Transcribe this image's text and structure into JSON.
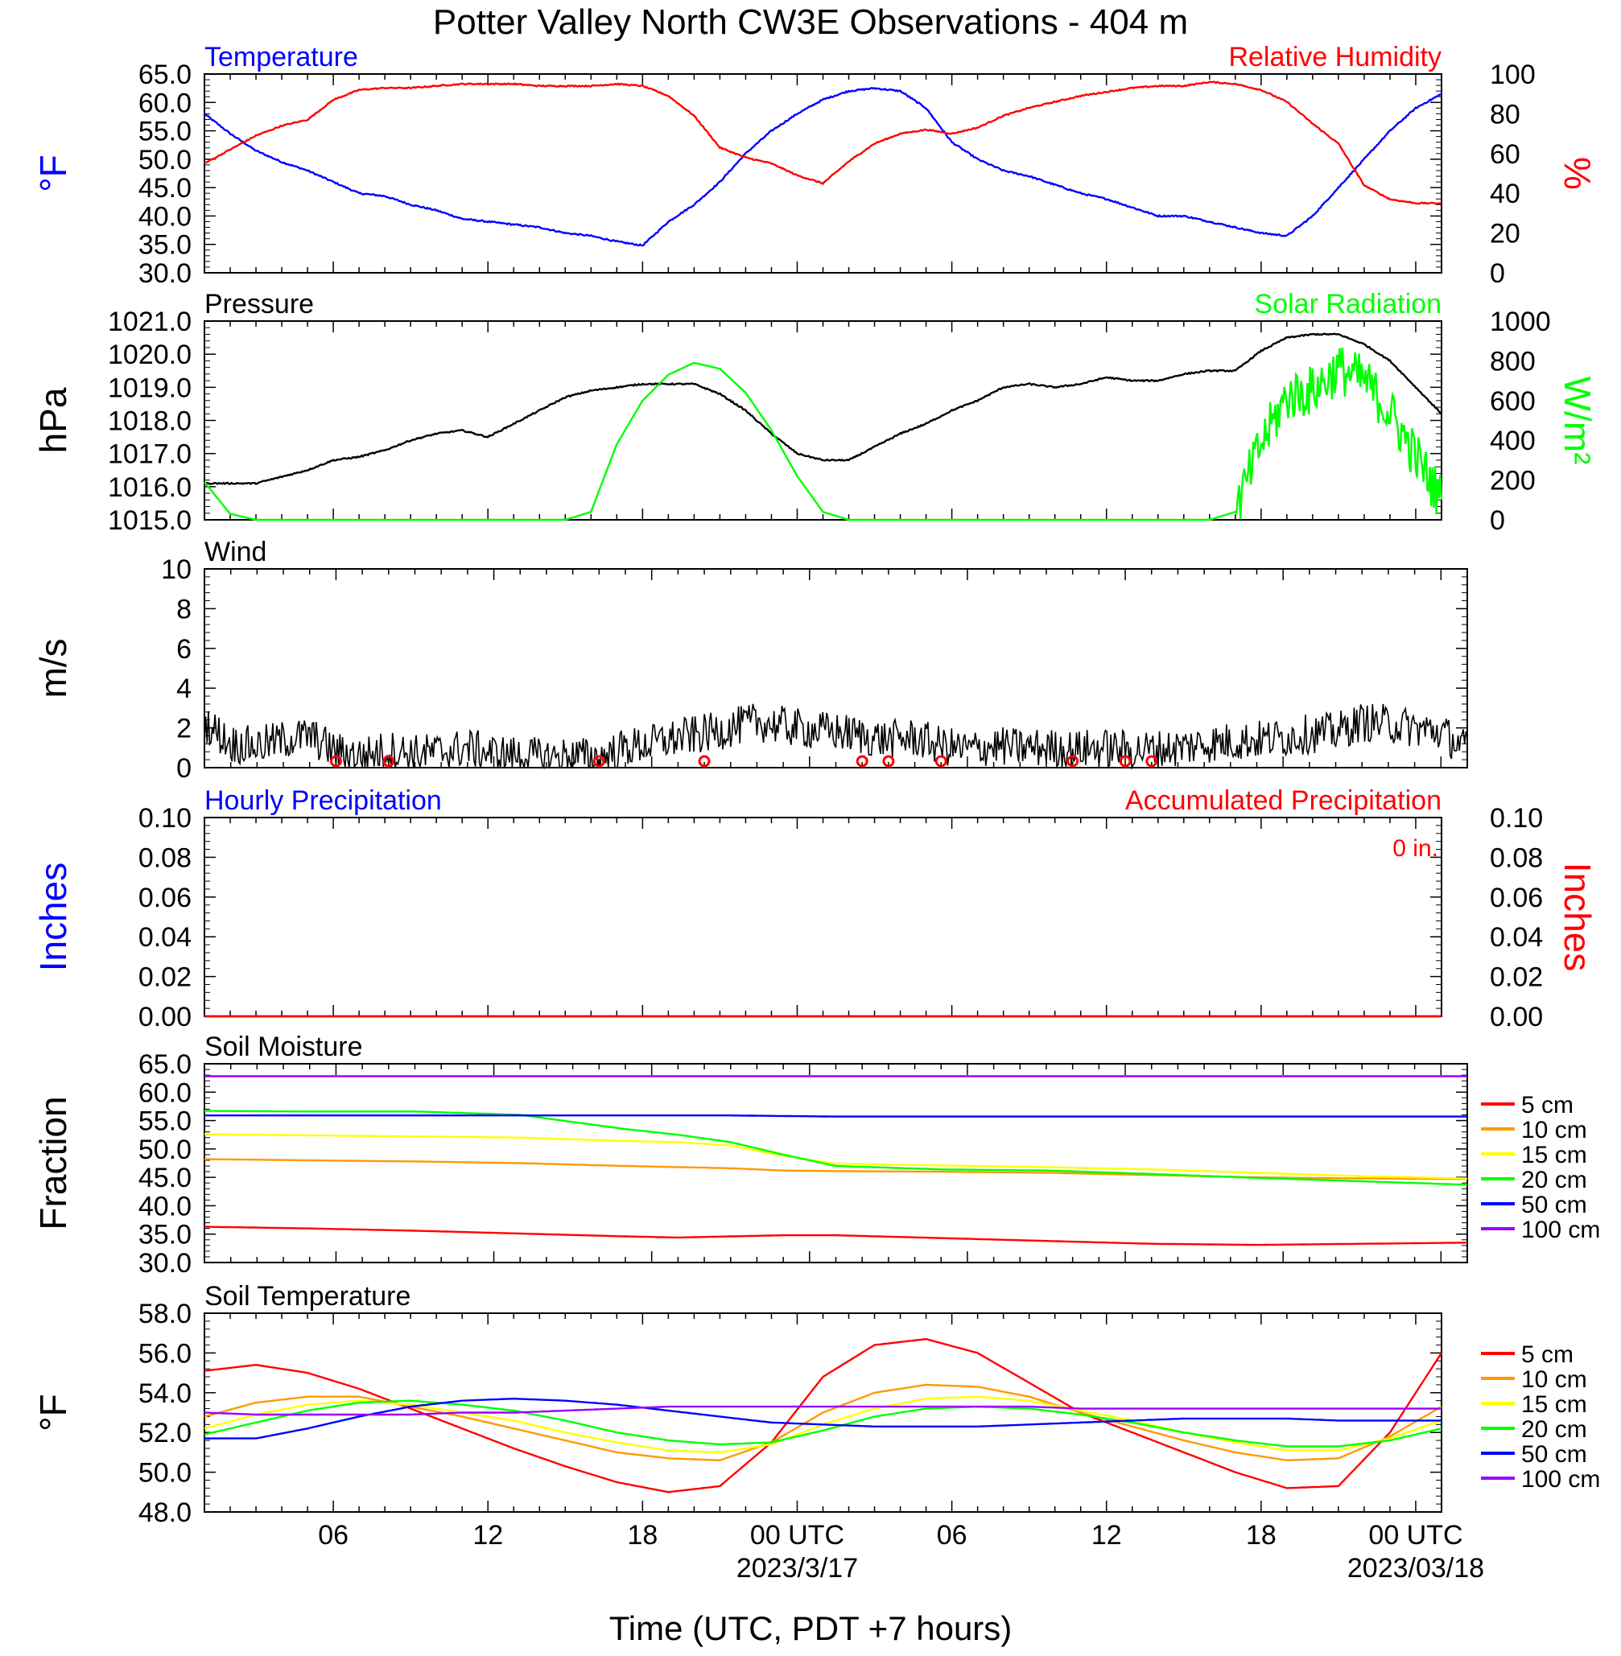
{
  "title": "Potter Valley North CW3E Observations - 404 m",
  "xlabel": "Time (UTC, PDT +7 hours)",
  "colors": {
    "temperature": "#0000ff",
    "humidity": "#ff0000",
    "pressure": "#000000",
    "solar": "#00ff00",
    "wind": "#000000",
    "barbs": "#ff0000",
    "precip_hourly": "#0000ff",
    "precip_accum": "#ff0000",
    "depth_5": "#ff0000",
    "depth_10": "#ff9900",
    "depth_15": "#ffff00",
    "depth_20": "#00ff00",
    "depth_50": "#0000ff",
    "depth_100": "#9900ff"
  },
  "x_axis": {
    "range_hours": [
      0,
      48
    ],
    "ticks": [
      {
        "h": 5,
        "label": "06"
      },
      {
        "h": 11,
        "label": "12"
      },
      {
        "h": 17,
        "label": "18"
      },
      {
        "h": 23,
        "label": "00 UTC",
        "date": "2023/3/17"
      },
      {
        "h": 29,
        "label": "06"
      },
      {
        "h": 35,
        "label": "12"
      },
      {
        "h": 41,
        "label": "18"
      },
      {
        "h": 47,
        "label": "00 UTC",
        "date": "2023/03/18"
      }
    ]
  },
  "chart_data": [
    {
      "id": "temp_rh",
      "type": "line",
      "title_left": "Temperature",
      "title_right": "Relative Humidity",
      "ylabel": "°F",
      "ylabel_right": "%",
      "ylim": [
        30,
        65
      ],
      "ylim_right": [
        0,
        100
      ],
      "yticks": [
        "30.0",
        "35.0",
        "40.0",
        "45.0",
        "50.0",
        "55.0",
        "60.0",
        "65.0"
      ],
      "yticks_right": [
        "0",
        "20",
        "40",
        "60",
        "80",
        "100"
      ],
      "x": [
        0,
        1,
        2,
        3,
        4,
        5,
        6,
        7,
        8,
        9,
        10,
        11,
        12,
        13,
        14,
        15,
        16,
        17,
        18,
        19,
        20,
        21,
        22,
        23,
        24,
        25,
        26,
        27,
        28,
        29,
        30,
        31,
        32,
        33,
        34,
        35,
        36,
        37,
        38,
        39,
        40,
        41,
        42,
        43,
        44,
        45,
        46,
        47,
        48
      ],
      "series": [
        {
          "name": "Temperature",
          "axis": "left",
          "color_key": "temperature",
          "values": [
            58,
            54.5,
            51.5,
            49.5,
            48,
            46,
            44,
            43.5,
            42,
            41,
            39.5,
            39,
            38.5,
            38,
            37,
            36.5,
            35.5,
            34.8,
            39,
            42,
            46,
            51,
            55,
            58,
            60.5,
            62,
            62.5,
            62,
            59,
            53,
            50,
            48,
            47,
            45.5,
            44,
            43,
            41.5,
            40,
            40,
            39,
            38,
            37,
            36.5,
            40,
            45,
            50,
            55,
            59,
            61.5
          ]
        },
        {
          "name": "Relative Humidity",
          "axis": "right",
          "color_key": "humidity",
          "values": [
            55,
            62,
            69,
            74,
            77,
            87,
            92,
            93,
            93,
            94,
            95,
            95,
            95,
            94,
            94,
            94,
            95,
            94,
            89,
            79,
            63,
            58,
            55,
            49,
            45,
            56,
            65,
            70,
            72,
            70,
            73,
            79,
            83,
            86,
            89,
            91,
            93,
            94,
            94,
            96,
            95,
            92,
            86,
            75,
            65,
            44,
            37,
            35,
            35
          ]
        }
      ]
    },
    {
      "id": "pressure_solar",
      "type": "line",
      "title_left": "Pressure",
      "title_right": "Solar Radiation",
      "ylabel": "hPa",
      "ylabel_right": "W/m²",
      "ylim": [
        1015,
        1021
      ],
      "ylim_right": [
        0,
        1000
      ],
      "yticks": [
        "1015.0",
        "1016.0",
        "1017.0",
        "1018.0",
        "1019.0",
        "1020.0",
        "1021.0"
      ],
      "yticks_right": [
        "0",
        "200",
        "400",
        "600",
        "800",
        "1000"
      ],
      "x": [
        0,
        1,
        2,
        3,
        4,
        5,
        6,
        7,
        8,
        9,
        10,
        11,
        12,
        13,
        14,
        15,
        16,
        17,
        18,
        19,
        20,
        21,
        22,
        23,
        24,
        25,
        26,
        27,
        28,
        29,
        30,
        31,
        32,
        33,
        34,
        35,
        36,
        37,
        38,
        39,
        40,
        41,
        42,
        43,
        44,
        45,
        46,
        47,
        48
      ],
      "series": [
        {
          "name": "Pressure",
          "axis": "left",
          "color_key": "pressure",
          "values": [
            1016.1,
            1016.1,
            1016.1,
            1016.3,
            1016.5,
            1016.8,
            1016.9,
            1017.1,
            1017.4,
            1017.6,
            1017.7,
            1017.5,
            1017.9,
            1018.3,
            1018.7,
            1018.9,
            1019.0,
            1019.1,
            1019.1,
            1019.1,
            1018.8,
            1018.3,
            1017.6,
            1017.0,
            1016.8,
            1016.8,
            1017.2,
            1017.6,
            1017.9,
            1018.3,
            1018.6,
            1019.0,
            1019.1,
            1019.0,
            1019.1,
            1019.3,
            1019.2,
            1019.2,
            1019.4,
            1019.5,
            1019.5,
            1020.1,
            1020.5,
            1020.6,
            1020.6,
            1020.3,
            1019.8,
            1019.0,
            1018.2
          ]
        },
        {
          "name": "Solar Radiation",
          "axis": "right",
          "color_key": "solar",
          "values": [
            190,
            30,
            0,
            0,
            0,
            0,
            0,
            0,
            0,
            0,
            0,
            0,
            0,
            0,
            0,
            40,
            380,
            600,
            730,
            790,
            760,
            640,
            450,
            220,
            40,
            0,
            0,
            0,
            0,
            0,
            0,
            0,
            0,
            0,
            0,
            0,
            0,
            0,
            0,
            0,
            40,
            380,
            620,
            650,
            760,
            700,
            540,
            320,
            100
          ]
        }
      ]
    },
    {
      "id": "wind",
      "type": "line",
      "title_left": "Wind",
      "ylabel": "m/s",
      "ylim": [
        0,
        10
      ],
      "yticks": [
        "0",
        "2",
        "4",
        "6",
        "8",
        "10"
      ],
      "x": [
        0,
        1,
        2,
        3,
        4,
        5,
        6,
        7,
        8,
        9,
        10,
        11,
        12,
        13,
        14,
        15,
        16,
        17,
        18,
        19,
        20,
        21,
        22,
        23,
        24,
        25,
        26,
        27,
        28,
        29,
        30,
        31,
        32,
        33,
        34,
        35,
        36,
        37,
        38,
        39,
        40,
        41,
        42,
        43,
        44,
        45,
        46,
        47,
        48
      ],
      "series": [
        {
          "name": "Wind",
          "color_key": "wind",
          "values": [
            2.3,
            1.2,
            1.1,
            1.4,
            1.6,
            0.8,
            0.6,
            0.9,
            0.7,
            0.8,
            1.0,
            0.7,
            0.6,
            0.5,
            0.6,
            0.5,
            1.0,
            1.2,
            1.5,
            1.7,
            2.0,
            2.3,
            2.1,
            1.9,
            1.8,
            1.6,
            1.4,
            1.5,
            1.1,
            0.9,
            1.1,
            1.0,
            1.0,
            0.9,
            1.0,
            0.9,
            0.9,
            1.0,
            1.2,
            1.3,
            1.4,
            1.5,
            1.7,
            1.8,
            2.3,
            2.2,
            2.0,
            1.8,
            0.9
          ]
        }
      ],
      "calm_marks_hours": [
        5,
        7,
        15,
        19,
        25,
        26,
        28,
        33,
        35,
        36
      ]
    },
    {
      "id": "precip",
      "type": "line",
      "title_left": "Hourly Precipitation",
      "title_right": "Accumulated Precipitation",
      "annotation": "0 in.",
      "ylabel": "Inches",
      "ylabel_right": "Inches",
      "ylim": [
        0,
        0.1
      ],
      "ylim_right": [
        0,
        0.1
      ],
      "yticks": [
        "0.00",
        "0.02",
        "0.04",
        "0.06",
        "0.08",
        "0.10"
      ],
      "yticks_right": [
        "0.00",
        "0.02",
        "0.04",
        "0.06",
        "0.08",
        "0.10"
      ],
      "x": [
        0,
        48
      ],
      "series": [
        {
          "name": "Hourly Precipitation",
          "axis": "left",
          "color_key": "precip_hourly",
          "values": [
            0,
            0
          ]
        },
        {
          "name": "Accumulated Precipitation",
          "axis": "right",
          "color_key": "precip_accum",
          "values": [
            0,
            0
          ]
        }
      ]
    },
    {
      "id": "soil_moisture",
      "type": "line",
      "title_left": "Soil Moisture",
      "ylabel": "Fraction",
      "ylim": [
        30,
        65
      ],
      "yticks": [
        "30.0",
        "35.0",
        "40.0",
        "45.0",
        "50.0",
        "55.0",
        "60.0",
        "65.0"
      ],
      "x": [
        0,
        4,
        8,
        12,
        16,
        18,
        20,
        22,
        24,
        28,
        32,
        36,
        40,
        44,
        48
      ],
      "series": [
        {
          "name": "5 cm",
          "color_key": "depth_5",
          "values": [
            36.3,
            36.0,
            35.6,
            35.1,
            34.6,
            34.4,
            34.6,
            34.8,
            34.8,
            34.3,
            33.8,
            33.3,
            33.1,
            33.3,
            33.5
          ]
        },
        {
          "name": "10 cm",
          "color_key": "depth_10",
          "values": [
            48.2,
            48.0,
            47.8,
            47.5,
            47.0,
            46.8,
            46.6,
            46.2,
            46.1,
            46.0,
            45.8,
            45.4,
            45.0,
            44.8,
            44.7
          ]
        },
        {
          "name": "15 cm",
          "color_key": "depth_15",
          "values": [
            52.6,
            52.4,
            52.2,
            52.0,
            51.4,
            51.2,
            50.6,
            48.8,
            47.4,
            47.1,
            46.8,
            46.4,
            45.8,
            45.2,
            44.8
          ]
        },
        {
          "name": "20 cm",
          "color_key": "depth_20",
          "values": [
            56.7,
            56.6,
            56.6,
            56.0,
            53.5,
            52.5,
            51.2,
            49.0,
            47.0,
            46.4,
            46.2,
            45.6,
            44.9,
            44.3,
            43.7
          ]
        },
        {
          "name": "50 cm",
          "color_key": "depth_50",
          "values": [
            55.9,
            55.9,
            55.9,
            55.9,
            55.9,
            55.9,
            55.9,
            55.8,
            55.7,
            55.7,
            55.7,
            55.7,
            55.7,
            55.7,
            55.7
          ]
        },
        {
          "name": "100 cm",
          "color_key": "depth_100",
          "values": [
            62.8,
            62.8,
            62.8,
            62.8,
            62.8,
            62.8,
            62.8,
            62.8,
            62.8,
            62.8,
            62.8,
            62.8,
            62.8,
            62.8,
            62.8
          ]
        }
      ]
    },
    {
      "id": "soil_temperature",
      "type": "line",
      "title_left": "Soil Temperature",
      "ylabel": "°F",
      "ylim": [
        48,
        58
      ],
      "yticks": [
        "48.0",
        "50.0",
        "52.0",
        "54.0",
        "56.0",
        "58.0"
      ],
      "x": [
        0,
        2,
        4,
        6,
        8,
        10,
        12,
        14,
        16,
        18,
        20,
        22,
        24,
        26,
        28,
        30,
        32,
        34,
        36,
        38,
        40,
        42,
        44,
        46,
        48
      ],
      "series": [
        {
          "name": "5 cm",
          "color_key": "depth_5",
          "values": [
            55.1,
            55.4,
            55.0,
            54.2,
            53.2,
            52.2,
            51.2,
            50.3,
            49.5,
            49.0,
            49.3,
            51.5,
            54.8,
            56.4,
            56.7,
            56.0,
            54.5,
            53.0,
            52.0,
            51.0,
            50.0,
            49.2,
            49.3,
            52.0,
            56.0
          ]
        },
        {
          "name": "10 cm",
          "color_key": "depth_10",
          "values": [
            52.8,
            53.5,
            53.8,
            53.8,
            53.3,
            52.8,
            52.2,
            51.6,
            51.0,
            50.7,
            50.6,
            51.5,
            53.0,
            54.0,
            54.4,
            54.3,
            53.8,
            53.0,
            52.3,
            51.6,
            51.0,
            50.6,
            50.7,
            51.8,
            53.3
          ]
        },
        {
          "name": "15 cm",
          "color_key": "depth_15",
          "values": [
            52.2,
            52.9,
            53.4,
            53.6,
            53.4,
            53.0,
            52.6,
            52.0,
            51.5,
            51.1,
            51.0,
            51.4,
            52.4,
            53.2,
            53.7,
            53.8,
            53.6,
            53.1,
            52.6,
            52.0,
            51.5,
            51.1,
            51.1,
            51.7,
            52.6
          ]
        },
        {
          "name": "20 cm",
          "color_key": "depth_20",
          "values": [
            51.9,
            52.5,
            53.1,
            53.5,
            53.6,
            53.4,
            53.1,
            52.6,
            52.0,
            51.6,
            51.4,
            51.5,
            52.1,
            52.8,
            53.2,
            53.3,
            53.2,
            52.9,
            52.5,
            52.0,
            51.6,
            51.3,
            51.3,
            51.6,
            52.2
          ]
        },
        {
          "name": "50 cm",
          "color_key": "depth_50",
          "values": [
            51.7,
            51.7,
            52.2,
            52.8,
            53.3,
            53.6,
            53.7,
            53.6,
            53.4,
            53.1,
            52.8,
            52.5,
            52.4,
            52.3,
            52.3,
            52.3,
            52.4,
            52.5,
            52.6,
            52.7,
            52.7,
            52.7,
            52.6,
            52.6,
            52.6
          ]
        },
        {
          "name": "100 cm",
          "color_key": "depth_100",
          "values": [
            53.0,
            52.9,
            52.9,
            52.9,
            52.9,
            53.0,
            53.0,
            53.1,
            53.2,
            53.3,
            53.3,
            53.3,
            53.3,
            53.3,
            53.3,
            53.3,
            53.3,
            53.2,
            53.2,
            53.2,
            53.2,
            53.2,
            53.2,
            53.2,
            53.2
          ]
        }
      ]
    }
  ]
}
